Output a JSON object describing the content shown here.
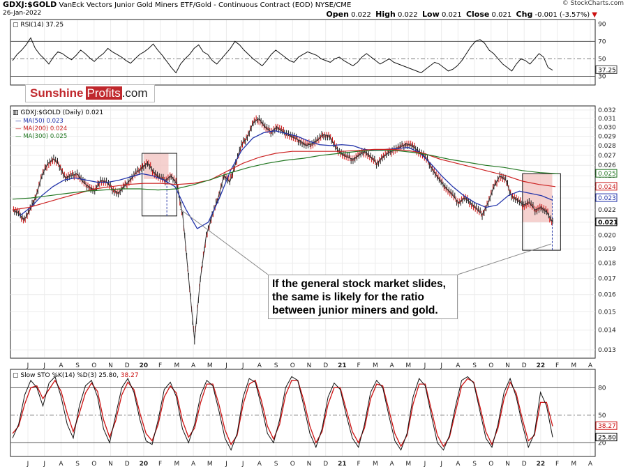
{
  "header": {
    "symbol": "GDXJ:$GOLD",
    "description": "VanEck Vectors Junior Gold Miners ETF/Gold - Continuous Contract (EOD)",
    "exchange": "NYSE/CME",
    "date": "26-Jan-2022",
    "open_label": "Open",
    "open": "0.022",
    "high_label": "High",
    "high": "0.022",
    "low_label": "Low",
    "low": "0.021",
    "close_label": "Close",
    "close": "0.021",
    "chg_label": "Chg",
    "chg": "-0.001 (-3.57%)",
    "credit": "© StockCharts.com"
  },
  "logo": {
    "part1": "Sunshine",
    "part2": "Profits",
    "part3": ".com"
  },
  "annotation": {
    "lines": [
      "If the general stock market slides,",
      "the same is likely for the ratio",
      "between junior miners and gold."
    ]
  },
  "colors": {
    "price": "#333333",
    "price_up": "#1a1a1a",
    "price_down": "#cc1111",
    "ma50": "#2233aa",
    "ma200": "#cc2222",
    "ma300": "#227722",
    "highlight": "#f3c6c3",
    "stoch_k": "#111111",
    "stoch_d": "#cc1111"
  },
  "chart_data": [
    {
      "type": "line",
      "panel": "RSI",
      "legend": "RSI(14) 37.25",
      "current": "37.25",
      "y_ticks": [
        "90",
        "70",
        "50",
        "30"
      ],
      "ylim": [
        20,
        95
      ],
      "series": [
        {
          "name": "RSI(14)",
          "values": [
            48,
            55,
            60,
            66,
            74,
            62,
            55,
            50,
            44,
            52,
            58,
            56,
            52,
            49,
            54,
            60,
            56,
            51,
            47,
            52,
            56,
            62,
            58,
            55,
            52,
            48,
            45,
            50,
            55,
            58,
            62,
            67,
            60,
            54,
            47,
            40,
            34,
            44,
            50,
            55,
            62,
            66,
            58,
            55,
            48,
            44,
            50,
            56,
            62,
            70,
            66,
            60,
            55,
            50,
            46,
            42,
            48,
            55,
            60,
            56,
            52,
            48,
            46,
            52,
            55,
            58,
            56,
            54,
            50,
            48,
            46,
            50,
            52,
            48,
            45,
            42,
            46,
            52,
            56,
            52,
            48,
            44,
            47,
            50,
            46,
            44,
            42,
            40,
            38,
            36,
            34,
            38,
            42,
            46,
            44,
            40,
            36,
            38,
            42,
            48,
            56,
            64,
            70,
            72,
            68,
            60,
            56,
            50,
            44,
            40,
            36,
            44,
            50,
            48,
            44,
            50,
            56,
            52,
            40,
            37
          ]
        }
      ]
    },
    {
      "type": "line",
      "panel": "price",
      "legend_price": "GDXJ:$GOLD (Daily) 0.021",
      "legend_ma50": "MA(50) 0.023",
      "legend_ma200": "MA(200) 0.024",
      "legend_ma300": "MA(300) 0.025",
      "y_ticks": [
        "0.032",
        "0.031",
        "0.030",
        "0.029",
        "0.028",
        "0.027",
        "0.026",
        "0.025",
        "0.024",
        "0.023",
        "0.022",
        "0.021",
        "0.020",
        "0.019",
        "0.018",
        "0.017",
        "0.016",
        "0.015",
        "0.014",
        "0.013"
      ],
      "ylim": [
        0.0126,
        0.0325
      ],
      "log_scale": true,
      "right_markers": [
        {
          "label": "0.025",
          "value": 0.0252,
          "color": "#227722"
        },
        {
          "label": "0.024",
          "value": 0.024,
          "color": "#cc2222"
        },
        {
          "label": "0.023",
          "value": 0.023,
          "color": "#2233aa"
        },
        {
          "label": "0.021",
          "value": 0.021,
          "color": "#000000"
        }
      ],
      "x_labels": [
        "J",
        "J",
        "A",
        "S",
        "O",
        "N",
        "D",
        "20",
        "F",
        "M",
        "A",
        "M",
        "J",
        "J",
        "A",
        "S",
        "O",
        "N",
        "D",
        "21",
        "F",
        "M",
        "A",
        "M",
        "J",
        "J",
        "A",
        "S",
        "O",
        "N",
        "D",
        "22",
        "F",
        "M",
        "A"
      ],
      "series": [
        {
          "name": "GDXJ:$GOLD",
          "values": [
            0.022,
            0.0217,
            0.0212,
            0.022,
            0.0232,
            0.025,
            0.0262,
            0.0266,
            0.026,
            0.0248,
            0.025,
            0.0252,
            0.0244,
            0.024,
            0.0236,
            0.0246,
            0.0244,
            0.0238,
            0.0234,
            0.024,
            0.0246,
            0.0252,
            0.0258,
            0.0262,
            0.0254,
            0.0248,
            0.0246,
            0.025,
            0.0242,
            0.0215,
            0.017,
            0.0135,
            0.017,
            0.02,
            0.0215,
            0.023,
            0.025,
            0.0244,
            0.0262,
            0.028,
            0.029,
            0.0305,
            0.031,
            0.03,
            0.0295,
            0.03,
            0.0295,
            0.0292,
            0.0288,
            0.0285,
            0.028,
            0.0282,
            0.0286,
            0.0292,
            0.029,
            0.0278,
            0.0272,
            0.0268,
            0.0266,
            0.027,
            0.0274,
            0.0268,
            0.0262,
            0.0268,
            0.0272,
            0.0276,
            0.0278,
            0.0282,
            0.028,
            0.0275,
            0.027,
            0.0262,
            0.0252,
            0.0244,
            0.0238,
            0.0232,
            0.0226,
            0.023,
            0.0226,
            0.0221,
            0.0216,
            0.0226,
            0.024,
            0.025,
            0.0246,
            0.0232,
            0.0228,
            0.0224,
            0.0226,
            0.022,
            0.0222,
            0.0218,
            0.021
          ]
        },
        {
          "name": "MA(50)",
          "values": [
            0.0215,
            0.0222,
            0.0232,
            0.024,
            0.0246,
            0.0248,
            0.0246,
            0.0244,
            0.0244,
            0.0246,
            0.0249,
            0.0252,
            0.025,
            0.0246,
            0.024,
            0.022,
            0.0205,
            0.021,
            0.023,
            0.0255,
            0.0275,
            0.0288,
            0.0294,
            0.0296,
            0.0293,
            0.029,
            0.0285,
            0.0281,
            0.028,
            0.0281,
            0.028,
            0.0276,
            0.0275,
            0.0276,
            0.0277,
            0.0278,
            0.0273,
            0.0262,
            0.025,
            0.024,
            0.0232,
            0.0226,
            0.0222,
            0.0224,
            0.0232,
            0.0236,
            0.0234,
            0.0232,
            0.0228
          ]
        },
        {
          "name": "MA(200)",
          "values": [
            0.022,
            0.0222,
            0.0226,
            0.023,
            0.0234,
            0.0238,
            0.024,
            0.0242,
            0.0243,
            0.0243,
            0.0242,
            0.0243,
            0.0246,
            0.0254,
            0.0262,
            0.0268,
            0.0272,
            0.0274,
            0.0274,
            0.0274,
            0.0274,
            0.0275,
            0.0276,
            0.0276,
            0.0275,
            0.0272,
            0.0266,
            0.0262,
            0.0258,
            0.0254,
            0.025,
            0.0245,
            0.0242,
            0.024
          ]
        },
        {
          "name": "MA(300)",
          "values": [
            0.0229,
            0.023,
            0.0232,
            0.0234,
            0.0236,
            0.0237,
            0.0238,
            0.0238,
            0.0237,
            0.0238,
            0.0242,
            0.0247,
            0.0253,
            0.0258,
            0.0262,
            0.0265,
            0.0267,
            0.027,
            0.0272,
            0.0274,
            0.0275,
            0.0275,
            0.0273,
            0.027,
            0.0266,
            0.0263,
            0.026,
            0.0258,
            0.0255,
            0.0253,
            0.0252
          ]
        }
      ]
    },
    {
      "type": "line",
      "panel": "Slow STO",
      "legend_prefix": "Slow STO %K(14) %D(3)",
      "k_value": "25.80",
      "d_value": "38.27",
      "y_ticks": [
        "80",
        "50",
        "20"
      ],
      "ylim": [
        5,
        100
      ],
      "right_markers": [
        {
          "label": "38.27",
          "value": 38.27,
          "color": "#cc1111"
        },
        {
          "label": "25.80",
          "value": 25.8,
          "color": "#000000"
        }
      ],
      "x_labels": [
        "J",
        "J",
        "A",
        "S",
        "O",
        "N",
        "D",
        "20",
        "F",
        "M",
        "A",
        "M",
        "J",
        "J",
        "A",
        "S",
        "O",
        "N",
        "D",
        "21",
        "F",
        "M",
        "A",
        "M",
        "J",
        "J",
        "A",
        "S",
        "O",
        "N",
        "D",
        "22",
        "F",
        "M",
        "A"
      ],
      "series": [
        {
          "name": "%K(14)",
          "values": [
            25,
            40,
            72,
            88,
            80,
            60,
            85,
            92,
            70,
            40,
            25,
            60,
            82,
            88,
            70,
            35,
            20,
            50,
            80,
            90,
            75,
            45,
            22,
            18,
            45,
            78,
            86,
            70,
            35,
            20,
            40,
            72,
            88,
            82,
            55,
            25,
            12,
            30,
            70,
            90,
            86,
            60,
            30,
            20,
            45,
            80,
            92,
            88,
            60,
            30,
            15,
            35,
            70,
            85,
            78,
            50,
            25,
            15,
            40,
            75,
            88,
            80,
            50,
            22,
            12,
            30,
            70,
            90,
            82,
            50,
            20,
            12,
            28,
            60,
            88,
            92,
            85,
            55,
            25,
            15,
            40,
            75,
            90,
            70,
            40,
            15,
            30,
            75,
            60,
            26
          ]
        },
        {
          "name": "%D(3)",
          "values": [
            30,
            38,
            62,
            80,
            82,
            68,
            78,
            88,
            76,
            52,
            32,
            52,
            74,
            85,
            76,
            45,
            26,
            44,
            72,
            86,
            78,
            52,
            30,
            22,
            40,
            70,
            82,
            74,
            44,
            26,
            36,
            64,
            84,
            84,
            62,
            34,
            18,
            28,
            62,
            84,
            88,
            66,
            38,
            24,
            40,
            72,
            88,
            88,
            66,
            38,
            20,
            32,
            62,
            80,
            80,
            56,
            32,
            20,
            36,
            68,
            84,
            82,
            56,
            30,
            16,
            28,
            62,
            84,
            84,
            56,
            28,
            16,
            26,
            54,
            82,
            90,
            86,
            60,
            32,
            18,
            36,
            68,
            86,
            74,
            46,
            22,
            28,
            64,
            64,
            38
          ]
        }
      ]
    }
  ]
}
